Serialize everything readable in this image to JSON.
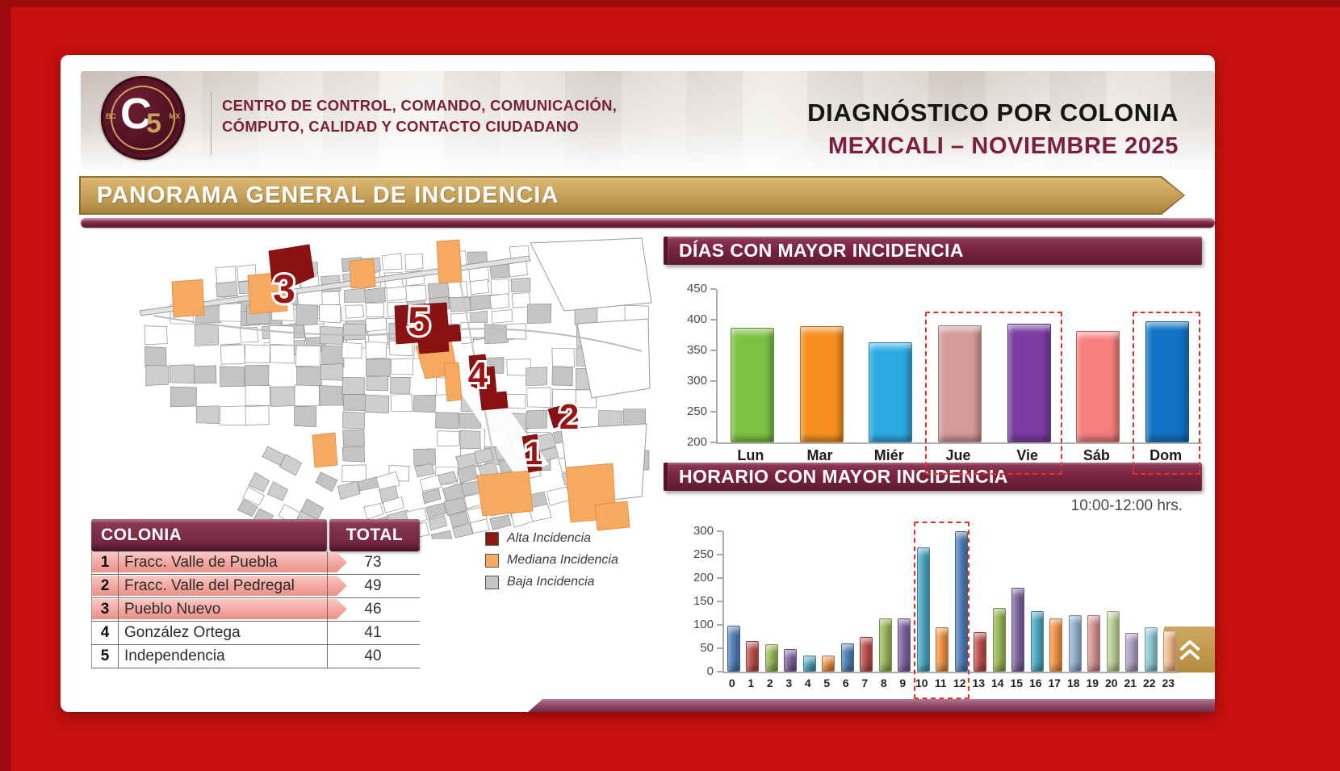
{
  "header": {
    "logo": {
      "center_c": "C",
      "center_5": "5",
      "left_text": "BC",
      "right_text": "MX"
    },
    "org_line1": "CENTRO DE CONTROL, COMANDO, COMUNICACIÓN,",
    "org_line2": "CÓMPUTO, CALIDAD Y CONTACTO CIUDADANO",
    "title": "DIAGNÓSTICO POR COLONIA",
    "subtitle": "MEXICALI – NOVIEMBRE 2025"
  },
  "banner": {
    "title": "PANORAMA GENERAL DE INCIDENCIA"
  },
  "map": {
    "markers": [
      {
        "label": "1"
      },
      {
        "label": "2"
      },
      {
        "label": "3"
      },
      {
        "label": "4"
      },
      {
        "label": "5"
      }
    ],
    "legend": [
      {
        "label": "Alta Incidencia",
        "color": "#8B1A10"
      },
      {
        "label": "Mediana Incidencia",
        "color": "#F6A961"
      },
      {
        "label": "Baja Incidencia",
        "color": "#C4C4C4"
      }
    ]
  },
  "table": {
    "headers": [
      "COLONIA",
      "TOTAL"
    ],
    "rows": [
      {
        "rank": "1",
        "colonia": "Fracc. Valle de Puebla",
        "total": "73",
        "highlighted": true
      },
      {
        "rank": "2",
        "colonia": "Fracc. Valle del Pedregal",
        "total": "49",
        "highlighted": true
      },
      {
        "rank": "3",
        "colonia": "Pueblo Nuevo",
        "total": "46",
        "highlighted": true
      },
      {
        "rank": "4",
        "colonia": "González Ortega",
        "total": "41",
        "highlighted": false
      },
      {
        "rank": "5",
        "colonia": "Independencia",
        "total": "40",
        "highlighted": false
      }
    ]
  },
  "chart_data": [
    {
      "type": "bar",
      "title": "DÍAS CON MAYOR INCIDENCIA",
      "categories": [
        "Lun",
        "Mar",
        "Miér",
        "Jue",
        "Vie",
        "Sáb",
        "Dom"
      ],
      "values": [
        387,
        390,
        363,
        391,
        393,
        382,
        398
      ],
      "ylim": [
        200,
        450
      ],
      "yticks": [
        450,
        400,
        350,
        300,
        250,
        200
      ],
      "bar_colors": [
        "#7DC242",
        "#F78F1E",
        "#2BAAE2",
        "#D49B9B",
        "#7B3DA3",
        "#F87F7F",
        "#1173C5"
      ],
      "highlight_groups": [
        [
          "Jue",
          "Vie"
        ],
        [
          "Dom"
        ]
      ],
      "highlight_color": "#E03127",
      "grid": false,
      "legend_position": "none"
    },
    {
      "type": "bar",
      "title": "HORARIO CON MAYOR INCIDENCIA",
      "annotation": "10:00-12:00 hrs.",
      "categories": [
        "0",
        "1",
        "2",
        "3",
        "4",
        "5",
        "6",
        "7",
        "8",
        "9",
        "10",
        "11",
        "12",
        "13",
        "14",
        "15",
        "16",
        "17",
        "18",
        "19",
        "20",
        "21",
        "22",
        "23"
      ],
      "values": [
        98,
        65,
        58,
        48,
        35,
        35,
        60,
        75,
        114,
        114,
        266,
        94,
        300,
        85,
        137,
        179,
        129,
        114,
        121,
        121,
        129,
        83,
        95,
        88
      ],
      "ylim": [
        0,
        300
      ],
      "yticks": [
        300,
        250,
        200,
        150,
        100,
        50,
        0
      ],
      "bar_colors": [
        "#4F81BD",
        "#C0504D",
        "#9BBB59",
        "#8064A2",
        "#4BACC6",
        "#F79646",
        "#4F81BD",
        "#C0504D",
        "#9BBB59",
        "#8064A2",
        "#4BACC6",
        "#F79646",
        "#4F81BD",
        "#C0504D",
        "#9BBB59",
        "#8064A2",
        "#4BACC6",
        "#F79646",
        "#95B3D7",
        "#D99694",
        "#C3D69B",
        "#B3A2C7",
        "#93CDDD",
        "#FAC090"
      ],
      "highlight_groups": [
        [
          "10",
          "11",
          "12"
        ]
      ],
      "highlight_color": "#E03127",
      "grid": false,
      "legend_position": "none"
    }
  ],
  "nav": {
    "scroll_button_icon": "chevrons-up-icon"
  },
  "colors": {
    "background_red": "#C5100E",
    "border_red": "#9B0B0E",
    "maroon": "#7A2440",
    "gold": "#C9A45C",
    "title_maroon": "#7A1F3D",
    "highlight_dashed": "#E03127"
  }
}
